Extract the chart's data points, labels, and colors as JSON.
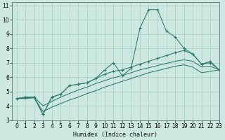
{
  "xlabel": "Humidex (Indice chaleur)",
  "background_color": "#cce8e0",
  "grid_color": "#a8ccc8",
  "line_color": "#2a7a6a",
  "xlim": [
    -0.5,
    23
  ],
  "ylim": [
    3,
    11.2
  ],
  "xticks": [
    0,
    1,
    2,
    3,
    4,
    5,
    6,
    7,
    8,
    9,
    10,
    11,
    12,
    13,
    14,
    15,
    16,
    17,
    18,
    19,
    20,
    21,
    22,
    23
  ],
  "yticks": [
    3,
    4,
    5,
    6,
    7,
    8,
    9,
    10,
    11
  ],
  "line1_x": [
    0,
    1,
    2,
    3,
    4,
    5,
    6,
    7,
    8,
    9,
    10,
    11,
    12,
    13,
    14,
    15,
    16,
    17,
    18,
    19,
    20,
    21,
    22,
    23
  ],
  "line1_y": [
    4.5,
    4.6,
    4.6,
    3.4,
    4.6,
    4.8,
    5.4,
    5.5,
    5.6,
    5.9,
    6.5,
    7.0,
    6.1,
    6.6,
    9.4,
    10.7,
    10.7,
    9.2,
    8.8,
    8.0,
    7.6,
    6.9,
    7.0,
    6.5
  ],
  "line2_x": [
    0,
    1,
    2,
    3,
    4,
    5,
    6,
    7,
    8,
    9,
    10,
    11,
    12,
    13,
    14,
    15,
    16,
    17,
    18,
    19,
    20,
    21,
    22,
    23
  ],
  "line2_y": [
    4.5,
    4.6,
    4.6,
    3.4,
    4.6,
    4.8,
    5.4,
    5.5,
    5.6,
    5.9,
    6.2,
    6.4,
    6.5,
    6.7,
    6.9,
    7.1,
    7.3,
    7.5,
    7.7,
    7.85,
    7.6,
    6.9,
    7.1,
    6.5
  ],
  "line3_x": [
    0,
    1,
    2,
    3,
    4,
    5,
    6,
    7,
    8,
    9,
    10,
    11,
    12,
    13,
    14,
    15,
    16,
    17,
    18,
    19,
    20,
    21,
    22,
    23
  ],
  "line3_y": [
    4.5,
    4.55,
    4.6,
    4.0,
    4.3,
    4.6,
    4.85,
    5.1,
    5.3,
    5.55,
    5.75,
    5.95,
    6.1,
    6.3,
    6.5,
    6.65,
    6.8,
    6.95,
    7.1,
    7.2,
    7.1,
    6.7,
    6.75,
    6.5
  ],
  "line4_x": [
    0,
    1,
    2,
    3,
    4,
    5,
    6,
    7,
    8,
    9,
    10,
    11,
    12,
    13,
    14,
    15,
    16,
    17,
    18,
    19,
    20,
    21,
    22,
    23
  ],
  "line4_y": [
    4.5,
    4.5,
    4.55,
    3.6,
    3.9,
    4.15,
    4.4,
    4.6,
    4.85,
    5.05,
    5.3,
    5.5,
    5.7,
    5.9,
    6.1,
    6.3,
    6.45,
    6.6,
    6.75,
    6.85,
    6.7,
    6.3,
    6.4,
    6.5
  ]
}
